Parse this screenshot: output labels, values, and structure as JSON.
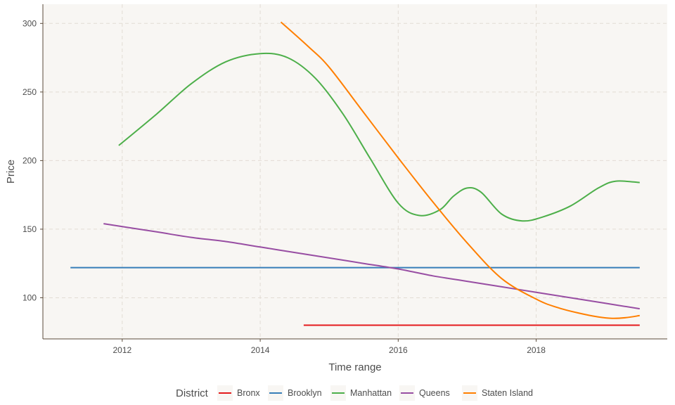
{
  "chart_data": {
    "type": "line",
    "xlabel": "Time range",
    "ylabel": "Price",
    "xlim": [
      2010.85,
      2019.9
    ],
    "ylim": [
      70,
      314
    ],
    "x_ticks": [
      2012,
      2014,
      2016,
      2018
    ],
    "y_ticks": [
      100,
      150,
      200,
      250,
      300
    ],
    "grid": true,
    "background": "#f8f6f3",
    "legend": {
      "title": "District",
      "position": "bottom"
    },
    "series": [
      {
        "name": "Bronx",
        "color": "#e41a1c",
        "x": [
          2014.63,
          2019.5
        ],
        "y": [
          80,
          80
        ]
      },
      {
        "name": "Brooklyn",
        "color": "#377eb8",
        "x": [
          2011.25,
          2019.5
        ],
        "y": [
          122,
          122
        ]
      },
      {
        "name": "Manhattan",
        "color": "#4daf4a",
        "x": [
          2011.95,
          2012.5,
          2013.0,
          2013.5,
          2014.0,
          2014.4,
          2014.8,
          2015.2,
          2015.6,
          2016.0,
          2016.3,
          2016.6,
          2016.8,
          2017.0,
          2017.2,
          2017.5,
          2017.8,
          2018.1,
          2018.5,
          2018.9,
          2019.15,
          2019.5
        ],
        "y": [
          211,
          234,
          256,
          272,
          278,
          275,
          260,
          234,
          201,
          169,
          160,
          164,
          174,
          180,
          177,
          161,
          156,
          159,
          167,
          180,
          185,
          184
        ]
      },
      {
        "name": "Queens",
        "color": "#984ea3",
        "x": [
          2011.73,
          2012.5,
          2013.0,
          2013.5,
          2014.0,
          2014.5,
          2015.0,
          2015.5,
          2016.0,
          2016.5,
          2017.0,
          2017.5,
          2018.0,
          2018.5,
          2019.0,
          2019.5
        ],
        "y": [
          154,
          148,
          144,
          141,
          137,
          133,
          129,
          125,
          121,
          116,
          112,
          108,
          104,
          100,
          96,
          92
        ]
      },
      {
        "name": "Staten Island",
        "color": "#ff7f00",
        "x": [
          2014.3,
          2014.7,
          2015.0,
          2015.5,
          2016.0,
          2016.5,
          2017.0,
          2017.5,
          2018.0,
          2018.3,
          2018.6,
          2018.9,
          2019.1,
          2019.3,
          2019.5
        ],
        "y": [
          301,
          283,
          268,
          235,
          202,
          170,
          140,
          114,
          99,
          93,
          89,
          86,
          85,
          85.5,
          87
        ]
      }
    ]
  }
}
